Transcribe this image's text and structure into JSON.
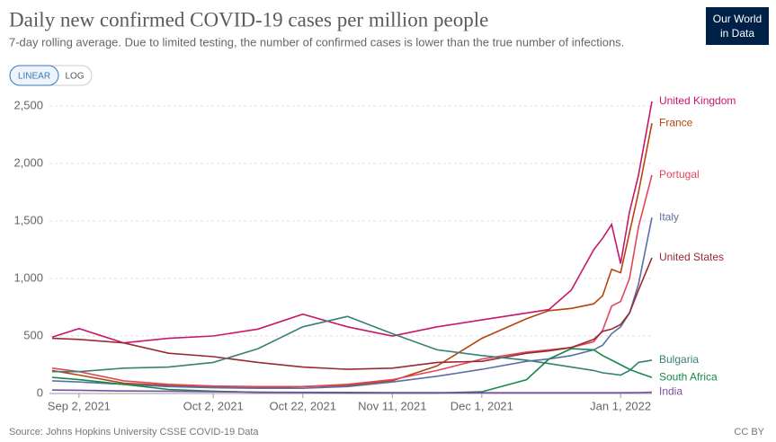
{
  "header": {
    "title": "Daily new confirmed COVID-19 cases per million people",
    "subtitle": "7-day rolling average. Due to limited testing, the number of confirmed cases is lower than the true number of infections."
  },
  "controls": {
    "linear": "LINEAR",
    "log": "LOG"
  },
  "logo": {
    "line1": "Our World",
    "line2": "in Data"
  },
  "footer": {
    "source": "Source: Johns Hopkins University CSSE COVID-19 Data",
    "license": "CC BY"
  },
  "chart_data": {
    "type": "line",
    "x": [
      "2021-08-27",
      "2021-09-02",
      "2021-09-12",
      "2021-09-22",
      "2021-10-02",
      "2021-10-12",
      "2021-10-22",
      "2021-11-01",
      "2021-11-11",
      "2021-11-21",
      "2021-12-01",
      "2021-12-11",
      "2021-12-16",
      "2021-12-21",
      "2021-12-26",
      "2021-12-28",
      "2021-12-30",
      "2022-01-01",
      "2022-01-03",
      "2022-01-05",
      "2022-01-08"
    ],
    "xlim": [
      "2021-08-27",
      "2022-01-08"
    ],
    "xticks": [
      {
        "value": "2021-09-02",
        "label": "Sep 2, 2021"
      },
      {
        "value": "2021-10-02",
        "label": "Oct 2, 2021"
      },
      {
        "value": "2021-10-22",
        "label": "Oct 22, 2021"
      },
      {
        "value": "2021-11-11",
        "label": "Nov 11, 2021"
      },
      {
        "value": "2021-12-01",
        "label": "Dec 1, 2021"
      },
      {
        "value": "2022-01-01",
        "label": "Jan 1, 2022"
      }
    ],
    "ylim": [
      0,
      2500
    ],
    "yticks": [
      0,
      500,
      {
        "value": 1000,
        "label": "1,000"
      },
      {
        "value": 1500,
        "label": "1,500"
      },
      {
        "value": 2000,
        "label": "2,000"
      },
      {
        "value": 2500,
        "label": "2,500"
      }
    ],
    "grid": true,
    "series": [
      {
        "name": "United Kingdom",
        "color": "#c8176b",
        "values": [
          490,
          565,
          440,
          480,
          500,
          560,
          690,
          580,
          500,
          580,
          640,
          700,
          730,
          900,
          1250,
          1350,
          1470,
          1130,
          1580,
          1900,
          2540
        ]
      },
      {
        "name": "France",
        "color": "#b6440c",
        "values": [
          200,
          160,
          90,
          70,
          55,
          50,
          60,
          70,
          110,
          240,
          480,
          650,
          720,
          740,
          780,
          850,
          1080,
          1050,
          1400,
          1750,
          2350
        ]
      },
      {
        "name": "Portugal",
        "color": "#e0475c",
        "values": [
          220,
          190,
          110,
          80,
          65,
          60,
          60,
          80,
          120,
          200,
          300,
          360,
          380,
          400,
          450,
          550,
          760,
          800,
          1000,
          1450,
          1900
        ]
      },
      {
        "name": "Italy",
        "color": "#5a6fa3",
        "values": [
          110,
          100,
          80,
          60,
          50,
          45,
          45,
          60,
          100,
          150,
          210,
          280,
          300,
          330,
          380,
          420,
          520,
          580,
          700,
          950,
          1530
        ]
      },
      {
        "name": "United States",
        "color": "#9a2a32",
        "values": [
          480,
          470,
          440,
          350,
          320,
          270,
          230,
          210,
          220,
          270,
          280,
          350,
          370,
          400,
          470,
          540,
          560,
          600,
          700,
          900,
          1180
        ]
      },
      {
        "name": "Bulgaria",
        "color": "#3a7f78",
        "values": [
          190,
          190,
          220,
          230,
          270,
          390,
          580,
          670,
          520,
          380,
          330,
          290,
          260,
          230,
          200,
          180,
          170,
          160,
          200,
          270,
          290
        ]
      },
      {
        "name": "South Africa",
        "color": "#178a4a",
        "values": [
          140,
          120,
          80,
          35,
          20,
          10,
          8,
          5,
          5,
          5,
          15,
          120,
          300,
          390,
          380,
          330,
          290,
          250,
          210,
          180,
          140
        ]
      },
      {
        "name": "India",
        "color": "#7d4ca8",
        "values": [
          30,
          28,
          22,
          20,
          15,
          12,
          10,
          9,
          7,
          7,
          6,
          6,
          6,
          6,
          6,
          6,
          6,
          6,
          7,
          8,
          12
        ]
      }
    ]
  }
}
